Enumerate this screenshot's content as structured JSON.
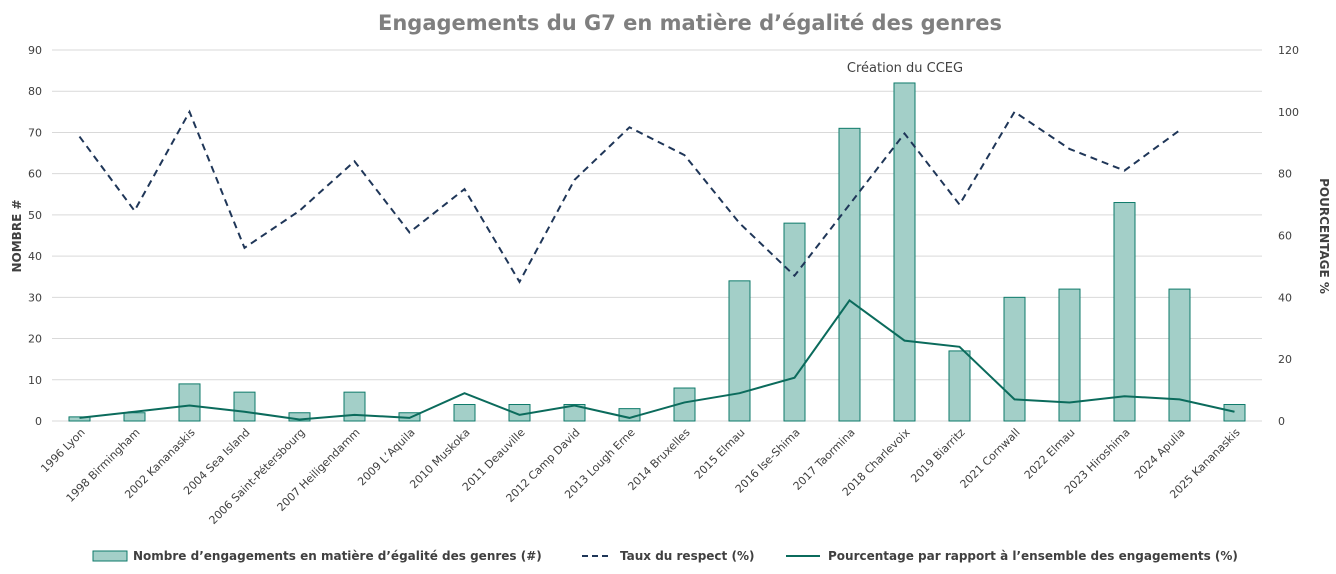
{
  "chart_data": {
    "type": "bar",
    "title": "Engagements du G7 en matière d’égalité des genres",
    "ylabel": "NOMBRE #",
    "y2label": "POURCENTAGE %",
    "ylim": [
      0,
      90
    ],
    "y2lim": [
      0,
      120
    ],
    "yticks": [
      0,
      10,
      20,
      30,
      40,
      50,
      60,
      70,
      80,
      90
    ],
    "y2ticks": [
      0,
      20,
      40,
      60,
      80,
      100,
      120
    ],
    "grid": true,
    "legend_position": "bottom",
    "annotation": "Création du CCEG",
    "categories": [
      "1996 Lyon",
      "1998 Birmingham",
      "2002 Kananaskis",
      "2004 Sea Island",
      "2006 Saint-Pétersbourg",
      "2007 Heiligendamm",
      "2009 L’Aquila",
      "2010 Muskoka",
      "2011 Deauville",
      "2012 Camp David",
      "2013 Lough Erne",
      "2014 Bruxelles",
      "2015 Elmau",
      "2016 Ise-Shima",
      "2017 Taormina",
      "2018 Charlevoix",
      "2019 Biarritz",
      "2021 Cornwall",
      "2022 Elmau",
      "2023 Hiroshima",
      "2024 Apulia",
      "2025 Kananaskis"
    ],
    "series": [
      {
        "name": "Nombre d’engagements en matière d’égalité des genres (#)",
        "type": "bar",
        "axis": "left",
        "color": "#a3cfc8",
        "stroke": "#0e7a6a",
        "values": [
          1,
          2,
          9,
          7,
          2,
          7,
          2,
          4,
          4,
          4,
          3,
          8,
          34,
          48,
          71,
          82,
          17,
          30,
          32,
          53,
          32,
          4
        ]
      },
      {
        "name": "Taux du respect (%)",
        "type": "line",
        "style": "dashed",
        "axis": "right",
        "color": "#1f3658",
        "values": [
          92,
          68,
          100,
          56,
          68,
          84,
          61,
          75,
          45,
          78,
          95,
          86,
          64,
          47,
          70,
          93,
          70,
          100,
          88,
          81,
          94,
          null
        ]
      },
      {
        "name": "Pourcentage par rapport à l’ensemble des engagements (%)",
        "type": "line",
        "style": "solid",
        "axis": "right",
        "color": "#0b6b5c",
        "values": [
          1,
          3,
          5,
          3,
          0.5,
          2,
          1,
          9,
          2,
          5,
          1,
          6,
          9,
          14,
          39,
          26,
          24,
          7,
          6,
          8,
          7,
          3
        ]
      }
    ]
  }
}
